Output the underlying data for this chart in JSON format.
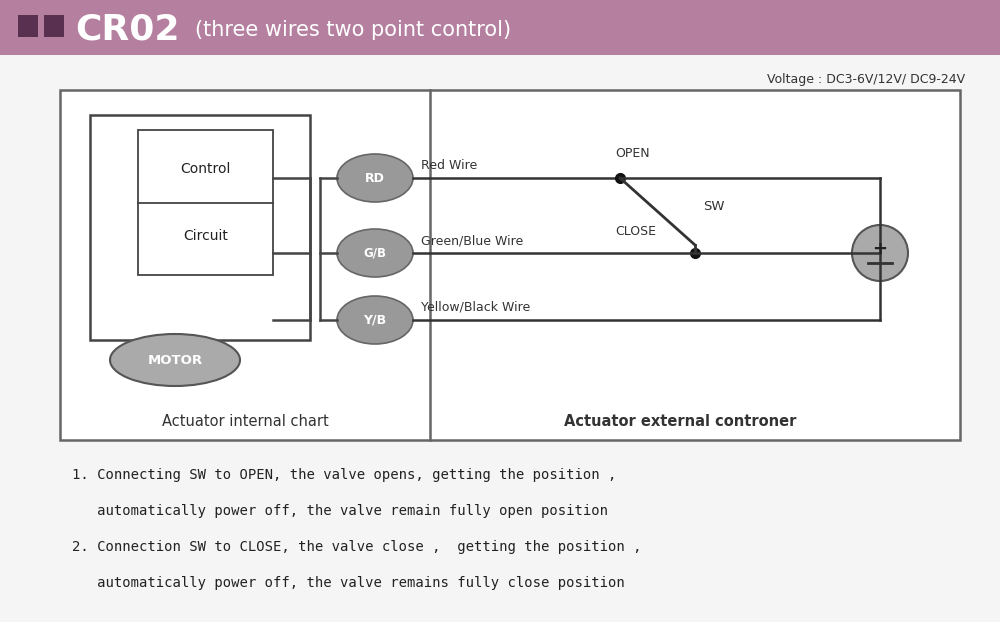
{
  "header_bg": "#b57fa0",
  "sq_color": "#5a3050",
  "voltage_text": "Voltage : DC3-6V/12V/ DC9-24V",
  "diagram_border": "#666666",
  "ellipse_fill": "#999999",
  "ellipse_edge": "#666666",
  "wire_color": "#333333",
  "box_color": "#444444",
  "internal_label": "Actuator internal chart",
  "external_label": "Actuator external controner",
  "bottom_text_1a": "1. Connecting SW to OPEN, the valve opens, getting the position ,",
  "bottom_text_1b": "   automatically power off, the valve remain fully open position",
  "bottom_text_2a": "2. Connection SW to CLOSE, the valve close ,  getting the position ,",
  "bottom_text_2b": "   automatically power off, the valve remains fully close position",
  "bg_color": "#f5f5f5"
}
